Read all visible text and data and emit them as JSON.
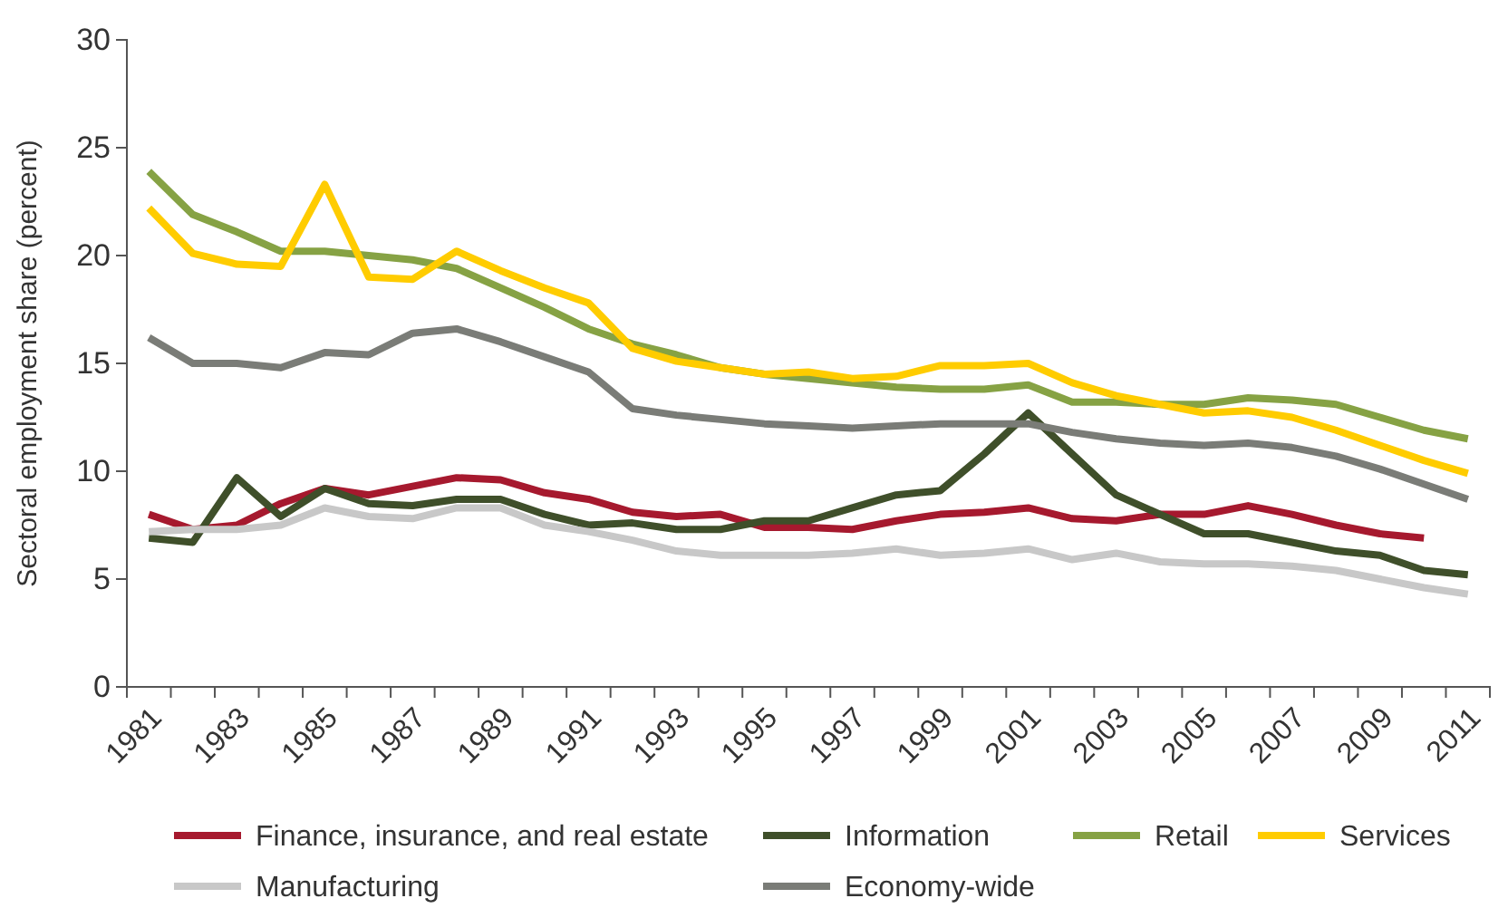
{
  "chart_data": {
    "type": "line",
    "ylabel": "Sectoral employment share (percent)",
    "categories": [
      "1981",
      null,
      "1983",
      null,
      "1985",
      null,
      "1987",
      null,
      "1989",
      null,
      "1991",
      null,
      "1993",
      null,
      "1995",
      null,
      "1997",
      null,
      "1999",
      null,
      "2001",
      null,
      "2003",
      null,
      "2005",
      null,
      "2007",
      null,
      "2009",
      null,
      "2011"
    ],
    "series": [
      {
        "name": "Finance, insurance, and real estate",
        "color": "#a6192e",
        "values": [
          8.0,
          7.3,
          7.5,
          8.5,
          9.2,
          8.9,
          9.3,
          9.7,
          9.6,
          9.0,
          8.7,
          8.1,
          7.9,
          8.0,
          7.4,
          7.4,
          7.3,
          7.7,
          8.0,
          8.1,
          8.3,
          7.8,
          7.7,
          8.0,
          8.0,
          8.4,
          8.0,
          7.5,
          7.1,
          6.9,
          null
        ]
      },
      {
        "name": "Information",
        "color": "#3f4f2a",
        "values": [
          6.9,
          6.7,
          9.7,
          7.9,
          9.2,
          8.5,
          8.4,
          8.7,
          8.7,
          8.0,
          7.5,
          7.6,
          7.3,
          7.3,
          7.7,
          7.7,
          8.3,
          8.9,
          9.1,
          10.8,
          12.7,
          10.8,
          8.9,
          8.0,
          7.1,
          7.1,
          6.7,
          6.3,
          6.1,
          5.4,
          5.2
        ]
      },
      {
        "name": "Retail",
        "color": "#86a244",
        "values": [
          23.9,
          21.9,
          21.1,
          20.2,
          20.2,
          20.0,
          19.8,
          19.4,
          18.5,
          17.6,
          16.6,
          15.9,
          15.4,
          14.8,
          14.5,
          14.3,
          14.1,
          13.9,
          13.8,
          13.8,
          14.0,
          13.2,
          13.2,
          13.1,
          13.1,
          13.4,
          13.3,
          13.1,
          12.5,
          11.9,
          11.5
        ]
      },
      {
        "name": "Services",
        "color": "#ffcc00",
        "values": [
          22.2,
          20.1,
          19.6,
          19.5,
          23.3,
          19.0,
          18.9,
          20.2,
          19.3,
          18.5,
          17.8,
          15.7,
          15.1,
          14.8,
          14.5,
          14.6,
          14.3,
          14.4,
          14.9,
          14.9,
          15.0,
          14.1,
          13.5,
          13.1,
          12.7,
          12.8,
          12.5,
          11.9,
          11.2,
          10.5,
          9.9
        ]
      },
      {
        "name": "Manufacturing",
        "color": "#c8c8c8",
        "values": [
          7.2,
          7.3,
          7.3,
          7.5,
          8.3,
          7.9,
          7.8,
          8.3,
          8.3,
          7.5,
          7.2,
          6.8,
          6.3,
          6.1,
          6.1,
          6.1,
          6.2,
          6.4,
          6.1,
          6.2,
          6.4,
          5.9,
          6.2,
          5.8,
          5.7,
          5.7,
          5.6,
          5.4,
          5.0,
          4.6,
          4.3
        ]
      },
      {
        "name": "Economy-wide",
        "color": "#7a7c77",
        "values": [
          16.2,
          15.0,
          15.0,
          14.8,
          15.5,
          15.4,
          16.4,
          16.6,
          16.0,
          15.3,
          14.6,
          12.9,
          12.6,
          12.4,
          12.2,
          12.1,
          12.0,
          12.1,
          12.2,
          12.2,
          12.2,
          11.8,
          11.5,
          11.3,
          11.2,
          11.3,
          11.1,
          10.7,
          10.1,
          9.4,
          8.7
        ]
      }
    ],
    "ylim": [
      0,
      30
    ],
    "yticks": [
      0,
      5,
      10,
      15,
      20,
      25,
      30
    ],
    "grid": false,
    "legend": "bottom",
    "marker": "none",
    "line_style": "solid"
  }
}
